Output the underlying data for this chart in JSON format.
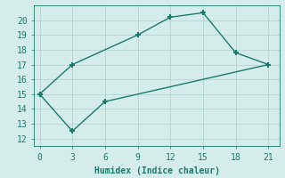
{
  "line1_x": [
    0,
    3,
    9,
    12,
    15,
    18,
    21
  ],
  "line1_y": [
    15,
    17,
    19,
    20.2,
    20.5,
    17.8,
    17
  ],
  "line2_x": [
    0,
    3,
    6,
    21
  ],
  "line2_y": [
    15,
    12.5,
    14.5,
    17
  ],
  "line_color": "#1a7a6e",
  "bg_color": "#d4ecea",
  "grid_color": "#b8d8d5",
  "xlabel": "Humidex (Indice chaleur)",
  "xlim": [
    -0.5,
    22
  ],
  "ylim": [
    11.5,
    21
  ],
  "xticks": [
    0,
    3,
    6,
    9,
    12,
    15,
    18,
    21
  ],
  "yticks": [
    12,
    13,
    14,
    15,
    16,
    17,
    18,
    19,
    20
  ],
  "marker": "+",
  "linewidth": 1.0,
  "markersize": 5
}
